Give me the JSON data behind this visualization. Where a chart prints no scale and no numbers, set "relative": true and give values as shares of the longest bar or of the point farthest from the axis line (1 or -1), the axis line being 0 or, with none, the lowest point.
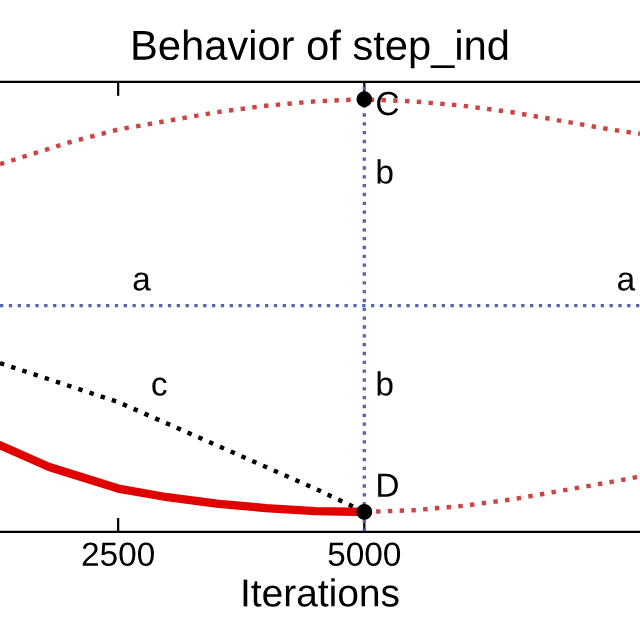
{
  "chart_data": {
    "type": "line",
    "title": "Behavior of step_ind",
    "xlabel": "Iterations",
    "relative": true,
    "xlim": [
      1300,
      7800
    ],
    "xticks": [
      2500,
      5000
    ],
    "grid": false,
    "legend": false,
    "tick_labels": "x",
    "series": [
      {
        "color": "#cc4444",
        "line_style": "dotted",
        "x": [
          1300,
          2000,
          2500,
          3000,
          3500,
          4000,
          4500,
          5000,
          5500,
          6000,
          6500,
          7000,
          7500,
          7800
        ],
        "values": [
          0.85,
          0.9,
          0.93,
          0.95,
          0.97,
          0.985,
          0.995,
          1,
          0.995,
          0.985,
          0.97,
          0.95,
          0.93,
          0.92
        ]
      },
      {
        "color": "#cc4444",
        "line_style": "dotted",
        "x": [
          5000,
          5500,
          6000,
          6500,
          7000,
          7500,
          7800
        ],
        "values": [
          0.046,
          0.05,
          0.06,
          0.075,
          0.095,
          0.115,
          0.128
        ]
      },
      {
        "color": "#e00000",
        "line_style": "solid",
        "x": [
          1300,
          1800,
          2500,
          3000,
          3500,
          4000,
          4500,
          5000
        ],
        "values": [
          0.2,
          0.15,
          0.1,
          0.08,
          0.065,
          0.055,
          0.048,
          0.046
        ]
      },
      {
        "color": "#000000",
        "line_style": "dotted",
        "x": [
          1300,
          2500,
          3500,
          4500,
          5000
        ],
        "values": [
          0.39,
          0.3,
          0.2,
          0.1,
          0.046
        ]
      },
      {
        "type": "scatter",
        "color": "#000000",
        "marker": "circle",
        "x": [
          5000,
          5000
        ],
        "values": [
          1,
          0.046
        ]
      }
    ],
    "ref_lines": [
      {
        "axis": "y",
        "value": 0.523,
        "color": "#5566aa",
        "line_style": "dotted"
      },
      {
        "axis": "x",
        "value": 5000,
        "color": "#5566aa",
        "line_style": "dotted"
      }
    ],
    "annotations": [
      {
        "text": "C",
        "x": 5000,
        "y": 1
      },
      {
        "text": "D",
        "x": 5000,
        "y": 0.046
      },
      {
        "text": "a",
        "x": 2530,
        "y": 0.523
      },
      {
        "text": "a",
        "x": 7450,
        "y": 0.523
      },
      {
        "text": "b",
        "x": 5000,
        "y": 0.77
      },
      {
        "text": "b",
        "x": 5000,
        "y": 0.28
      },
      {
        "text": "c",
        "x": 2720,
        "y": 0.28
      }
    ]
  }
}
